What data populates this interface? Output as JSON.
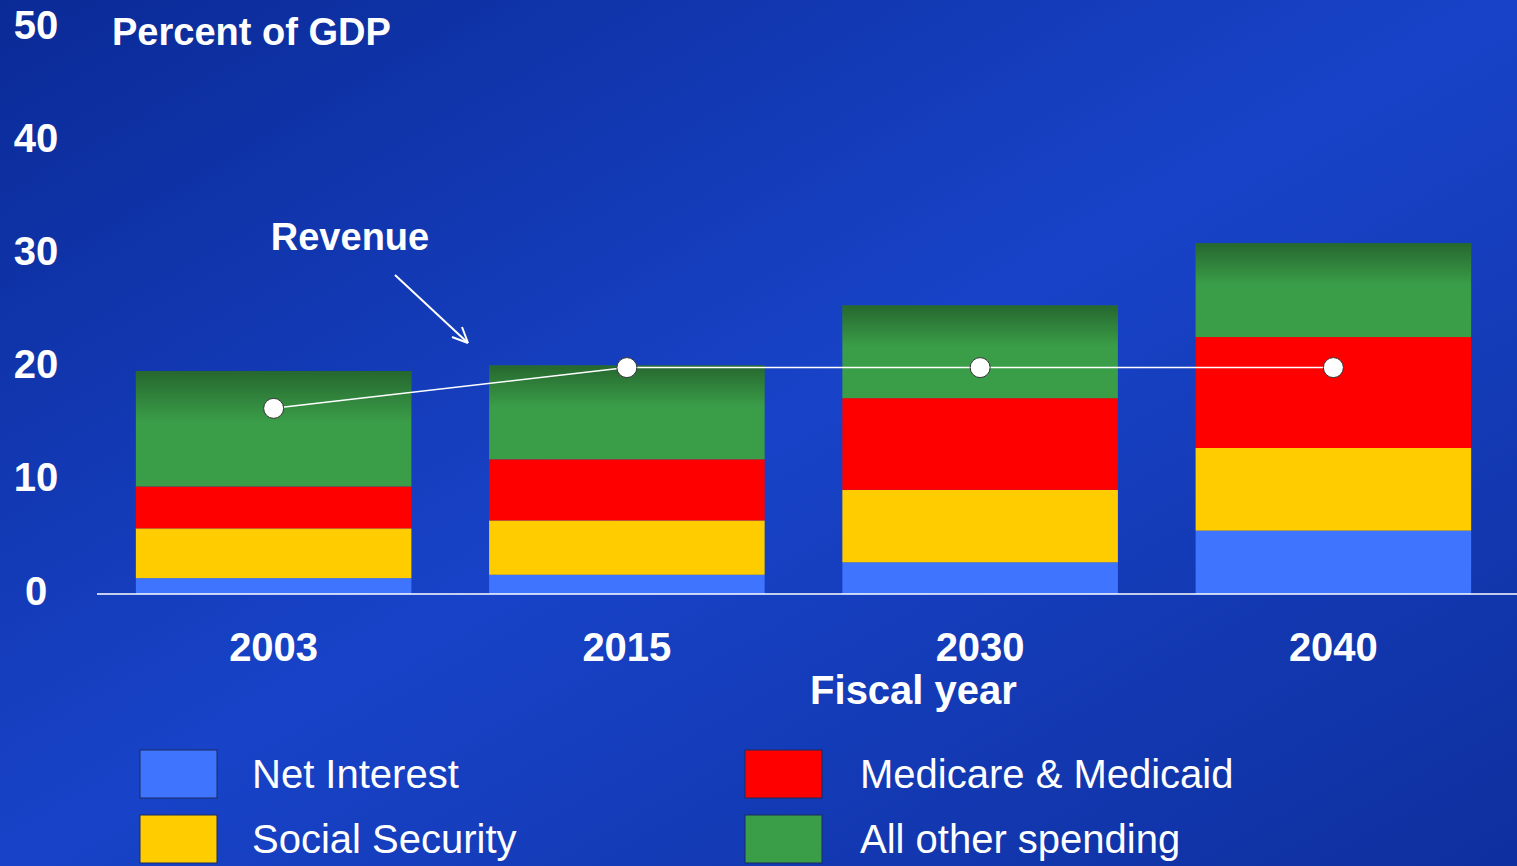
{
  "chart_data": {
    "type": "bar",
    "stacked": true,
    "y_label": "Percent of GDP",
    "x_label": "Fiscal year",
    "categories": [
      "2003",
      "2015",
      "2030",
      "2040"
    ],
    "series": [
      {
        "name": "Net Interest",
        "color": "#3f74ff",
        "values": [
          1.4,
          1.7,
          2.8,
          5.6
        ]
      },
      {
        "name": "Social Security",
        "color": "#ffcc00",
        "values": [
          4.4,
          4.8,
          6.4,
          7.3
        ]
      },
      {
        "name": "Medicare & Medicaid",
        "color": "#ff0000",
        "values": [
          3.7,
          5.4,
          8.1,
          9.8
        ]
      },
      {
        "name": "All other spending",
        "color": "#3a9e48",
        "values": [
          10.2,
          8.3,
          8.2,
          8.3
        ]
      },
      {
        "name": "Revenue",
        "type": "line",
        "color": "#ffffff",
        "marker": "circle",
        "values": [
          16.4,
          20.0,
          20.0,
          20.0
        ]
      }
    ],
    "ylim": [
      0,
      50
    ],
    "yticks": [
      0,
      10,
      20,
      30,
      40,
      50
    ],
    "grid": false,
    "legend": "bottom"
  }
}
